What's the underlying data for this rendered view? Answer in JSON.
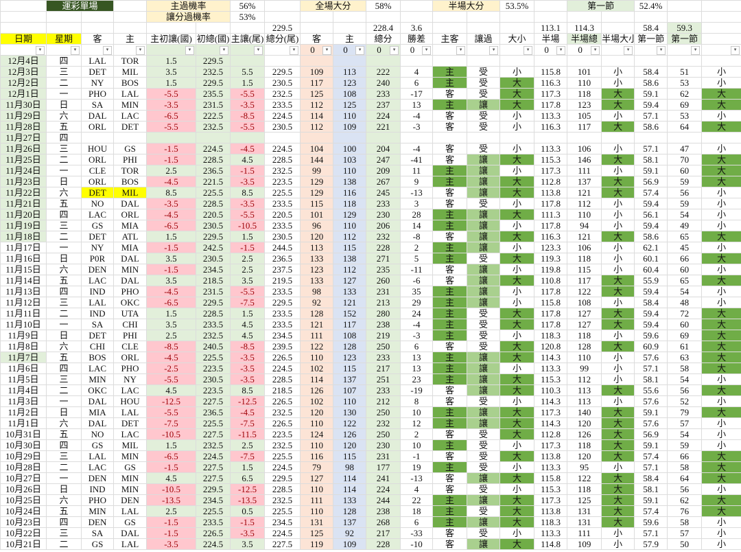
{
  "summary": {
    "title": "運彩單場",
    "home_win_rate_label": "主過機率",
    "home_win_rate": "56%",
    "spread_rate_label": "讓分過機率",
    "spread_rate": "53%",
    "full_over_label": "全場大分",
    "full_over_rate": "58%",
    "half_over_label": "半場大分",
    "half_over_rate": "53.5%",
    "q1_label": "第一節",
    "q1_rate": "52.4%"
  },
  "averages": {
    "total_tail": "229.5",
    "total": "228.4",
    "margin": "3.6",
    "half_avg": "113.1",
    "half_total": "114.3",
    "q1_avg": "58.4",
    "q1_total": "59.3"
  },
  "headers": [
    "日期",
    "星期",
    "客",
    "主",
    "主初讓(國)",
    "初總(國)",
    "主讓(尾)",
    "總分(尾)",
    "客",
    "主",
    "總分",
    "勝差",
    "主客",
    "讓過",
    "大小",
    "半場",
    "半場總",
    "半場大小",
    "第一節",
    "第一節",
    ""
  ],
  "filters": [
    "",
    "",
    "",
    "",
    "",
    "",
    "",
    "",
    "0",
    "0",
    "0",
    "0",
    "",
    "",
    "",
    "0",
    "0",
    "",
    "",
    "",
    ""
  ],
  "colors": {
    "dark_green": "#70ad47",
    "mid_green": "#a9d08e",
    "light_green": "#e2efda",
    "pink": "#ffc7ce",
    "peach": "#fce4d6",
    "blue": "#dae3f3",
    "yellow": "#ffff00",
    "title_green": "#375623"
  },
  "styles": {
    "date_marked": [
      "12月4日",
      "12月3日",
      "12月2日",
      "12月1日",
      "11月30日",
      "11月29日",
      "11月28日",
      "11月27日",
      "11月26日",
      "11月25日",
      "11月24日",
      "11月23日",
      "11月22日",
      "11月21日",
      "11月20日",
      "11月19日",
      "11月18日",
      "11月7日"
    ],
    "team_marked": [
      "11月22日"
    ]
  },
  "rows": [
    [
      "12月4日",
      "四",
      "LAL",
      "TOR",
      "1.5",
      "229.5",
      "",
      "",
      "",
      "",
      "",
      "",
      "",
      "",
      "",
      "",
      "",
      "",
      "",
      "",
      ""
    ],
    [
      "12月3日",
      "三",
      "DET",
      "MIL",
      "3.5",
      "232.5",
      "5.5",
      "229.5",
      "109",
      "113",
      "222",
      "4",
      "主",
      "受",
      "小",
      "115.8",
      "101",
      "小",
      "58.4",
      "51",
      "小"
    ],
    [
      "12月2日",
      "二",
      "NY",
      "BOS",
      "1.5",
      "229.5",
      "1.5",
      "230.5",
      "117",
      "123",
      "240",
      "6",
      "主",
      "受",
      "大",
      "116.3",
      "110",
      "小",
      "58.6",
      "53",
      "小"
    ],
    [
      "12月1日",
      "一",
      "PHO",
      "LAL",
      "-5.5",
      "235.5",
      "-5.5",
      "232.5",
      "125",
      "108",
      "233",
      "-17",
      "客",
      "受",
      "大",
      "117.3",
      "118",
      "大",
      "59.1",
      "62",
      "大"
    ],
    [
      "11月30日",
      "日",
      "SA",
      "MIN",
      "-3.5",
      "231.5",
      "-3.5",
      "233.5",
      "112",
      "125",
      "237",
      "13",
      "主",
      "讓",
      "大",
      "117.8",
      "123",
      "大",
      "59.4",
      "69",
      "大"
    ],
    [
      "11月29日",
      "六",
      "DAL",
      "LAC",
      "-6.5",
      "222.5",
      "-8.5",
      "224.5",
      "114",
      "110",
      "224",
      "-4",
      "客",
      "受",
      "小",
      "113.3",
      "105",
      "小",
      "57.1",
      "53",
      "小"
    ],
    [
      "11月28日",
      "五",
      "ORL",
      "DET",
      "-5.5",
      "232.5",
      "-5.5",
      "230.5",
      "112",
      "109",
      "221",
      "-3",
      "客",
      "受",
      "小",
      "116.3",
      "117",
      "大",
      "58.6",
      "64",
      "大"
    ],
    [
      "11月27日",
      "四",
      "",
      "",
      "",
      "",
      "",
      "",
      "",
      "",
      "",
      "",
      "",
      "",
      "",
      "",
      "",
      "",
      "",
      "",
      ""
    ],
    [
      "11月26日",
      "三",
      "HOU",
      "GS",
      "-1.5",
      "224.5",
      "-4.5",
      "224.5",
      "104",
      "100",
      "204",
      "-4",
      "客",
      "受",
      "小",
      "113.3",
      "106",
      "小",
      "57.1",
      "47",
      "小"
    ],
    [
      "11月25日",
      "二",
      "ORL",
      "PHI",
      "-1.5",
      "228.5",
      "4.5",
      "228.5",
      "144",
      "103",
      "247",
      "-41",
      "客",
      "讓",
      "大",
      "115.3",
      "146",
      "大",
      "58.1",
      "70",
      "大"
    ],
    [
      "11月24日",
      "一",
      "CLE",
      "TOR",
      "2.5",
      "236.5",
      "-1.5",
      "232.5",
      "99",
      "110",
      "209",
      "11",
      "主",
      "讓",
      "小",
      "117.3",
      "111",
      "小",
      "59.1",
      "60",
      "大"
    ],
    [
      "11月23日",
      "日",
      "ORL",
      "BOS",
      "-4.5",
      "221.5",
      "-3.5",
      "223.5",
      "129",
      "138",
      "267",
      "9",
      "主",
      "讓",
      "大",
      "112.8",
      "137",
      "大",
      "56.9",
      "59",
      "大"
    ],
    [
      "11月22日",
      "六",
      "DET",
      "MIL",
      "8.5",
      "225.5",
      "8.5",
      "225.5",
      "129",
      "116",
      "245",
      "-13",
      "客",
      "讓",
      "大",
      "113.8",
      "121",
      "大",
      "57.4",
      "56",
      "小"
    ],
    [
      "11月21日",
      "五",
      "NO",
      "DAL",
      "-3.5",
      "228.5",
      "-3.5",
      "233.5",
      "115",
      "118",
      "233",
      "3",
      "客",
      "受",
      "小",
      "117.8",
      "112",
      "小",
      "59.4",
      "59",
      "小"
    ],
    [
      "11月20日",
      "四",
      "LAC",
      "ORL",
      "-4.5",
      "220.5",
      "-5.5",
      "220.5",
      "101",
      "129",
      "230",
      "28",
      "主",
      "讓",
      "大",
      "111.3",
      "110",
      "小",
      "56.1",
      "54",
      "小"
    ],
    [
      "11月19日",
      "三",
      "GS",
      "MIA",
      "-6.5",
      "230.5",
      "-10.5",
      "233.5",
      "96",
      "110",
      "206",
      "14",
      "主",
      "讓",
      "小",
      "117.8",
      "94",
      "小",
      "59.4",
      "49",
      "小"
    ],
    [
      "11月18日",
      "二",
      "DET",
      "ATL",
      "1.5",
      "229.5",
      "1.5",
      "230.5",
      "120",
      "112",
      "232",
      "-8",
      "客",
      "讓",
      "大",
      "116.3",
      "121",
      "大",
      "58.6",
      "65",
      "大"
    ],
    [
      "11月17日",
      "一",
      "NY",
      "MIA",
      "-1.5",
      "242.5",
      "-1.5",
      "244.5",
      "113",
      "115",
      "228",
      "2",
      "主",
      "讓",
      "小",
      "123.3",
      "106",
      "小",
      "62.1",
      "45",
      "小"
    ],
    [
      "11月16日",
      "日",
      "P0R",
      "DAL",
      "3.5",
      "230.5",
      "2.5",
      "236.5",
      "133",
      "138",
      "271",
      "5",
      "主",
      "受",
      "大",
      "119.3",
      "118",
      "小",
      "60.1",
      "66",
      "大"
    ],
    [
      "11月15日",
      "六",
      "DEN",
      "MIN",
      "-1.5",
      "234.5",
      "2.5",
      "237.5",
      "123",
      "112",
      "235",
      "-11",
      "客",
      "讓",
      "小",
      "119.8",
      "115",
      "小",
      "60.4",
      "60",
      "小"
    ],
    [
      "11月14日",
      "五",
      "LAC",
      "DAL",
      "3.5",
      "218.5",
      "3.5",
      "219.5",
      "133",
      "127",
      "260",
      "-6",
      "客",
      "讓",
      "大",
      "110.8",
      "117",
      "大",
      "55.9",
      "65",
      "大"
    ],
    [
      "11月13日",
      "四",
      "IND",
      "PHO",
      "-4.5",
      "231.5",
      "-5.5",
      "233.5",
      "98",
      "133",
      "231",
      "35",
      "主",
      "讓",
      "小",
      "117.8",
      "122",
      "大",
      "59.4",
      "54",
      "小"
    ],
    [
      "11月12日",
      "三",
      "LAL",
      "OKC",
      "-6.5",
      "229.5",
      "-7.5",
      "229.5",
      "92",
      "121",
      "213",
      "29",
      "主",
      "讓",
      "小",
      "115.8",
      "108",
      "小",
      "58.4",
      "48",
      "小"
    ],
    [
      "11月11日",
      "二",
      "IND",
      "UTA",
      "1.5",
      "228.5",
      "1.5",
      "233.5",
      "128",
      "152",
      "280",
      "24",
      "主",
      "受",
      "大",
      "117.8",
      "127",
      "大",
      "59.4",
      "72",
      "大"
    ],
    [
      "11月10日",
      "一",
      "SA",
      "CHI",
      "3.5",
      "233.5",
      "4.5",
      "233.5",
      "121",
      "117",
      "238",
      "-4",
      "主",
      "受",
      "大",
      "117.8",
      "127",
      "大",
      "59.4",
      "60",
      "大"
    ],
    [
      "11月9日",
      "日",
      "DET",
      "PHI",
      "2.5",
      "232.5",
      "4.5",
      "234.5",
      "111",
      "108",
      "219",
      "-3",
      "主",
      "受",
      "小",
      "118.3",
      "118",
      "小",
      "59.6",
      "69",
      "大"
    ],
    [
      "11月8日",
      "六",
      "CHI",
      "CLE",
      "-8.5",
      "240.5",
      "-8.5",
      "239.5",
      "122",
      "128",
      "250",
      "6",
      "客",
      "受",
      "大",
      "120.8",
      "128",
      "大",
      "60.9",
      "61",
      "大"
    ],
    [
      "11月7日",
      "五",
      "BOS",
      "ORL",
      "-4.5",
      "225.5",
      "-3.5",
      "226.5",
      "110",
      "123",
      "233",
      "13",
      "主",
      "讓",
      "大",
      "114.3",
      "110",
      "小",
      "57.6",
      "63",
      "大"
    ],
    [
      "11月6日",
      "四",
      "LAC",
      "PHO",
      "-2.5",
      "223.5",
      "-3.5",
      "224.5",
      "102",
      "115",
      "217",
      "13",
      "主",
      "讓",
      "小",
      "113.3",
      "99",
      "小",
      "57.1",
      "58",
      "大"
    ],
    [
      "11月5日",
      "三",
      "MIN",
      "NY",
      "-5.5",
      "230.5",
      "-3.5",
      "228.5",
      "114",
      "137",
      "251",
      "23",
      "主",
      "讓",
      "大",
      "115.3",
      "112",
      "小",
      "58.1",
      "54",
      "小"
    ],
    [
      "11月4日",
      "二",
      "OKC",
      "LAC",
      "4.5",
      "223.5",
      "8.5",
      "218.5",
      "126",
      "107",
      "233",
      "-19",
      "客",
      "讓",
      "大",
      "110.3",
      "113",
      "大",
      "55.6",
      "56",
      "大"
    ],
    [
      "11月3日",
      "一",
      "DAL",
      "HOU",
      "-12.5",
      "227.5",
      "-12.5",
      "226.5",
      "102",
      "110",
      "212",
      "8",
      "客",
      "受",
      "小",
      "114.3",
      "113",
      "小",
      "57.6",
      "52",
      "小"
    ],
    [
      "11月2日",
      "日",
      "MIA",
      "LAL",
      "-5.5",
      "236.5",
      "-4.5",
      "232.5",
      "120",
      "130",
      "250",
      "10",
      "主",
      "讓",
      "大",
      "117.3",
      "140",
      "大",
      "59.1",
      "79",
      "大"
    ],
    [
      "11月1日",
      "六",
      "DAL",
      "DET",
      "-7.5",
      "225.5",
      "-7.5",
      "226.5",
      "110",
      "122",
      "232",
      "12",
      "主",
      "讓",
      "大",
      "114.3",
      "120",
      "大",
      "57.6",
      "57",
      "小"
    ],
    [
      "10月31日",
      "五",
      "NO",
      "LAC",
      "-10.5",
      "227.5",
      "-11.5",
      "223.5",
      "124",
      "126",
      "250",
      "2",
      "客",
      "受",
      "大",
      "112.8",
      "126",
      "大",
      "56.9",
      "54",
      "小"
    ],
    [
      "10月30日",
      "四",
      "GS",
      "MIL",
      "1.5",
      "232.5",
      "2.5",
      "232.5",
      "110",
      "120",
      "230",
      "10",
      "主",
      "受",
      "小",
      "117.3",
      "118",
      "大",
      "59.1",
      "59",
      "小"
    ],
    [
      "10月29日",
      "三",
      "LAL",
      "MIN",
      "-6.5",
      "224.5",
      "-7.5",
      "225.5",
      "116",
      "115",
      "231",
      "-1",
      "客",
      "受",
      "大",
      "113.8",
      "120",
      "大",
      "57.4",
      "66",
      "大"
    ],
    [
      "10月28日",
      "二",
      "LAC",
      "GS",
      "-1.5",
      "227.5",
      "1.5",
      "224.5",
      "79",
      "98",
      "177",
      "19",
      "主",
      "受",
      "小",
      "113.3",
      "95",
      "小",
      "57.1",
      "58",
      "大"
    ],
    [
      "10月27日",
      "一",
      "DEN",
      "MIN",
      "4.5",
      "227.5",
      "6.5",
      "229.5",
      "127",
      "114",
      "241",
      "-13",
      "客",
      "讓",
      "大",
      "115.8",
      "122",
      "大",
      "58.4",
      "64",
      "大"
    ],
    [
      "10月26日",
      "日",
      "IND",
      "MIN",
      "-10.5",
      "229.5",
      "-12.5",
      "228.5",
      "110",
      "114",
      "224",
      "4",
      "客",
      "受",
      "小",
      "115.3",
      "118",
      "大",
      "58.1",
      "56",
      "小"
    ],
    [
      "10月25日",
      "六",
      "PHO",
      "DEN",
      "-13.5",
      "234.5",
      "-13.5",
      "232.5",
      "111",
      "133",
      "244",
      "22",
      "主",
      "讓",
      "大",
      "117.3",
      "125",
      "大",
      "59.1",
      "62",
      "大"
    ],
    [
      "10月24日",
      "五",
      "MIN",
      "LAL",
      "2.5",
      "225.5",
      "0.5",
      "225.5",
      "110",
      "128",
      "238",
      "18",
      "主",
      "受",
      "大",
      "113.8",
      "131",
      "大",
      "57.4",
      "76",
      "大"
    ],
    [
      "10月23日",
      "四",
      "DEN",
      "GS",
      "-1.5",
      "233.5",
      "-1.5",
      "234.5",
      "131",
      "137",
      "268",
      "6",
      "主",
      "讓",
      "大",
      "118.3",
      "131",
      "大",
      "59.6",
      "58",
      "小"
    ],
    [
      "10月22日",
      "三",
      "SA",
      "DAL",
      "-1.5",
      "226.5",
      "-3.5",
      "224.5",
      "125",
      "92",
      "217",
      "-33",
      "客",
      "受",
      "小",
      "113.3",
      "111",
      "小",
      "57.1",
      "57",
      "小"
    ],
    [
      "10月21日",
      "二",
      "GS",
      "LAL",
      "-3.5",
      "224.5",
      "3.5",
      "227.5",
      "119",
      "109",
      "228",
      "-10",
      "客",
      "讓",
      "大",
      "114.8",
      "109",
      "小",
      "57.9",
      "50",
      "小"
    ]
  ]
}
